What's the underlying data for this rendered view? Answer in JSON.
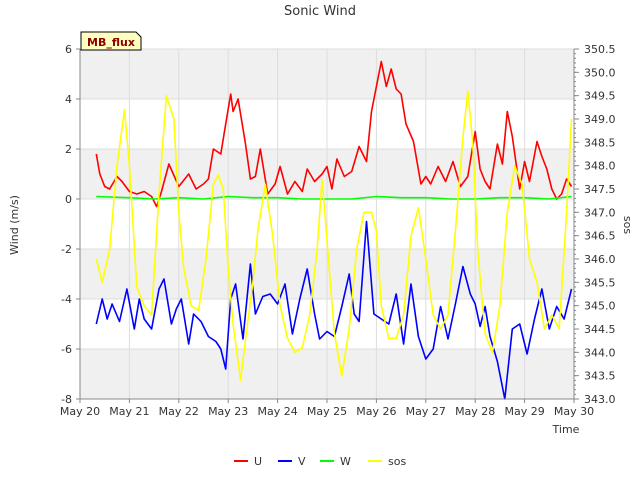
{
  "chart_data": {
    "type": "line",
    "title": "Sonic Wind",
    "xlabel": "Time",
    "ylabel_left": "Wind (m/s)",
    "ylabel_right": "sos",
    "badge": "MB_flux",
    "x_ticks": [
      "May 20",
      "May 21",
      "May 22",
      "May 23",
      "May 24",
      "May 25",
      "May 26",
      "May 27",
      "May 28",
      "May 29",
      "May 30"
    ],
    "xlim": [
      0,
      10
    ],
    "ylim_left": [
      -8,
      6
    ],
    "y_ticks_left": [
      -8,
      -6,
      -4,
      -2,
      0,
      2,
      4,
      6
    ],
    "ylim_right": [
      343.0,
      350.5
    ],
    "y_ticks_right": [
      343.0,
      343.5,
      344.0,
      344.5,
      345.0,
      345.5,
      346.0,
      346.5,
      347.0,
      347.5,
      348.0,
      348.5,
      349.0,
      349.5,
      350.0,
      350.5
    ],
    "series": [
      {
        "name": "U",
        "color": "#ff0000",
        "axis": "left",
        "x": [
          0.33,
          0.4,
          0.5,
          0.6,
          0.75,
          0.85,
          1.0,
          1.15,
          1.3,
          1.45,
          1.55,
          1.65,
          1.8,
          2.0,
          2.2,
          2.35,
          2.5,
          2.6,
          2.7,
          2.85,
          2.95,
          3.05,
          3.1,
          3.2,
          3.35,
          3.45,
          3.55,
          3.65,
          3.8,
          3.95,
          4.05,
          4.2,
          4.35,
          4.5,
          4.6,
          4.75,
          4.9,
          5.0,
          5.1,
          5.2,
          5.35,
          5.5,
          5.65,
          5.8,
          5.9,
          6.0,
          6.1,
          6.2,
          6.3,
          6.4,
          6.5,
          6.6,
          6.75,
          6.9,
          7.0,
          7.1,
          7.25,
          7.4,
          7.55,
          7.7,
          7.85,
          8.0,
          8.1,
          8.2,
          8.3,
          8.45,
          8.55,
          8.65,
          8.75,
          8.9,
          9.0,
          9.1,
          9.25,
          9.35,
          9.45,
          9.55,
          9.65,
          9.75,
          9.85,
          9.95
        ],
        "y": [
          1.8,
          1.0,
          0.5,
          0.4,
          0.9,
          0.7,
          0.3,
          0.2,
          0.3,
          0.1,
          -0.3,
          0.3,
          1.4,
          0.5,
          1.0,
          0.4,
          0.6,
          0.8,
          2.0,
          1.8,
          3.0,
          4.2,
          3.5,
          4.0,
          2.2,
          0.8,
          0.9,
          2.0,
          0.2,
          0.6,
          1.3,
          0.2,
          0.7,
          0.3,
          1.2,
          0.7,
          1.0,
          1.3,
          0.4,
          1.6,
          0.9,
          1.1,
          2.1,
          1.5,
          3.5,
          4.5,
          5.5,
          4.5,
          5.2,
          4.4,
          4.2,
          3.0,
          2.3,
          0.6,
          0.9,
          0.6,
          1.3,
          0.7,
          1.5,
          0.5,
          0.9,
          2.7,
          1.2,
          0.7,
          0.4,
          2.2,
          1.4,
          3.5,
          2.5,
          0.4,
          1.5,
          0.7,
          2.3,
          1.7,
          1.2,
          0.4,
          0.0,
          0.2,
          0.8,
          0.5
        ]
      },
      {
        "name": "V",
        "color": "#0000ff",
        "axis": "left",
        "x": [
          0.33,
          0.45,
          0.55,
          0.65,
          0.8,
          0.95,
          1.1,
          1.2,
          1.3,
          1.45,
          1.6,
          1.7,
          1.85,
          1.95,
          2.05,
          2.2,
          2.3,
          2.45,
          2.6,
          2.75,
          2.85,
          2.95,
          3.05,
          3.15,
          3.3,
          3.45,
          3.55,
          3.7,
          3.85,
          4.0,
          4.15,
          4.3,
          4.45,
          4.6,
          4.75,
          4.85,
          5.0,
          5.15,
          5.3,
          5.45,
          5.55,
          5.65,
          5.8,
          5.95,
          6.1,
          6.25,
          6.4,
          6.55,
          6.7,
          6.85,
          7.0,
          7.15,
          7.3,
          7.45,
          7.6,
          7.75,
          7.9,
          8.0,
          8.1,
          8.2,
          8.3,
          8.45,
          8.6,
          8.75,
          8.9,
          9.05,
          9.2,
          9.35,
          9.5,
          9.65,
          9.8,
          9.95
        ],
        "y": [
          -5.0,
          -4.0,
          -4.8,
          -4.2,
          -4.9,
          -3.6,
          -5.2,
          -4.0,
          -4.8,
          -5.2,
          -3.6,
          -3.2,
          -5.0,
          -4.4,
          -4.0,
          -5.8,
          -4.6,
          -4.9,
          -5.5,
          -5.7,
          -6.0,
          -6.8,
          -4.0,
          -3.4,
          -5.6,
          -2.6,
          -4.6,
          -3.9,
          -3.8,
          -4.2,
          -3.4,
          -5.4,
          -4.0,
          -2.8,
          -4.6,
          -5.6,
          -5.3,
          -5.5,
          -4.3,
          -3.0,
          -4.6,
          -4.9,
          -0.9,
          -4.6,
          -4.8,
          -5.0,
          -3.8,
          -5.8,
          -3.4,
          -5.5,
          -6.4,
          -6.0,
          -4.3,
          -5.6,
          -4.2,
          -2.7,
          -3.8,
          -4.2,
          -5.1,
          -4.3,
          -5.5,
          -6.5,
          -8.0,
          -5.2,
          -5.0,
          -6.2,
          -4.8,
          -3.6,
          -5.2,
          -4.3,
          -4.8,
          -3.6
        ]
      },
      {
        "name": "W",
        "color": "#00ff00",
        "axis": "left",
        "x": [
          0.33,
          1.0,
          1.5,
          2.0,
          2.5,
          3.0,
          3.5,
          4.0,
          4.5,
          5.0,
          5.5,
          6.0,
          6.5,
          7.0,
          7.5,
          8.0,
          8.5,
          9.0,
          9.5,
          9.95
        ],
        "y": [
          0.1,
          0.05,
          0.0,
          0.05,
          0.0,
          0.1,
          0.05,
          0.05,
          0.0,
          0.0,
          0.0,
          0.1,
          0.05,
          0.05,
          0.0,
          0.0,
          0.05,
          0.05,
          0.0,
          0.1
        ]
      },
      {
        "name": "sos",
        "color": "#ffff00",
        "axis": "right",
        "x": [
          0.33,
          0.45,
          0.6,
          0.75,
          0.9,
          1.0,
          1.15,
          1.3,
          1.45,
          1.6,
          1.75,
          1.9,
          2.0,
          2.1,
          2.25,
          2.4,
          2.55,
          2.7,
          2.8,
          2.9,
          3.0,
          3.1,
          3.25,
          3.4,
          3.5,
          3.6,
          3.75,
          3.9,
          4.05,
          4.2,
          4.35,
          4.5,
          4.65,
          4.8,
          4.9,
          5.0,
          5.15,
          5.3,
          5.45,
          5.6,
          5.75,
          5.9,
          6.0,
          6.1,
          6.25,
          6.4,
          6.55,
          6.7,
          6.85,
          7.0,
          7.15,
          7.3,
          7.45,
          7.6,
          7.75,
          7.85,
          7.95,
          8.05,
          8.2,
          8.35,
          8.5,
          8.65,
          8.8,
          8.95,
          9.1,
          9.25,
          9.4,
          9.55,
          9.7,
          9.85,
          9.95
        ],
        "y": [
          346.0,
          345.5,
          346.2,
          348.0,
          349.2,
          348.0,
          345.4,
          345.0,
          344.8,
          347.4,
          349.5,
          349.0,
          347.0,
          345.8,
          345.0,
          344.9,
          346.0,
          347.6,
          347.8,
          347.5,
          345.8,
          344.6,
          343.4,
          344.7,
          345.5,
          346.6,
          347.6,
          346.5,
          345.0,
          344.3,
          344.0,
          344.1,
          344.8,
          346.2,
          347.7,
          346.4,
          344.4,
          343.5,
          344.5,
          346.2,
          347.0,
          347.0,
          346.6,
          345.0,
          344.3,
          344.3,
          344.8,
          346.5,
          347.1,
          346.0,
          344.8,
          344.5,
          344.8,
          346.6,
          348.6,
          349.6,
          348.5,
          346.2,
          344.4,
          344.0,
          345.0,
          347.0,
          348.0,
          347.6,
          346.0,
          345.5,
          344.5,
          344.8,
          344.5,
          347.0,
          349.0
        ]
      }
    ],
    "legend": [
      "U",
      "V",
      "W",
      "sos"
    ]
  }
}
